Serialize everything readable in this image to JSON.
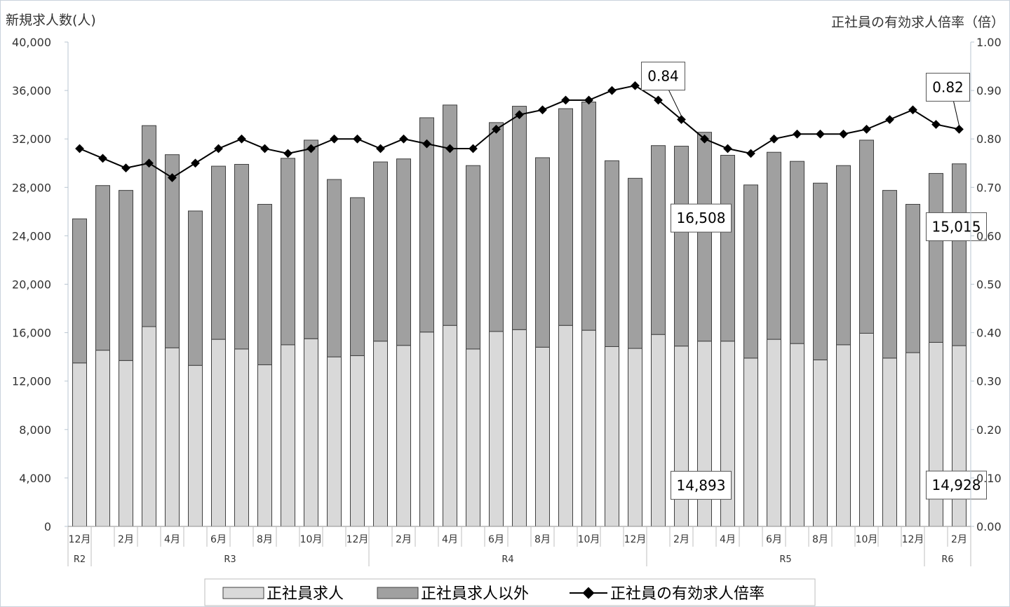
{
  "colors": {
    "regular_bar": "#d9d9d9",
    "other_bar": "#a0a0a0",
    "bar_stroke": "#404040",
    "line": "#000000",
    "grid": "#b9c6d2"
  },
  "chart_data": {
    "type": "bar",
    "stacked": true,
    "left_axis_label": "新規求人数(人)",
    "right_axis_label": "正社員の有効求人倍率（倍）",
    "ylim_left": [
      0,
      40000
    ],
    "ylim_right": [
      0,
      1.0
    ],
    "left_ticks": [
      "0",
      "4,000",
      "8,000",
      "12,000",
      "16,000",
      "20,000",
      "24,000",
      "28,000",
      "32,000",
      "36,000",
      "40,000"
    ],
    "right_ticks": [
      "0.00",
      "0.10",
      "0.20",
      "0.30",
      "0.40",
      "0.50",
      "0.60",
      "0.70",
      "0.80",
      "0.90",
      "1.00"
    ],
    "month_labels": [
      "12月",
      "",
      "2月",
      "",
      "4月",
      "",
      "6月",
      "",
      "8月",
      "",
      "10月",
      "",
      "12月",
      "",
      "2月",
      "",
      "4月",
      "",
      "6月",
      "",
      "8月",
      "",
      "10月",
      "",
      "12月",
      "",
      "2月",
      "",
      "4月",
      "",
      "6月",
      "",
      "8月",
      "",
      "10月",
      "",
      "12月",
      "",
      "2月"
    ],
    "eras": [
      {
        "label": "R2",
        "start": 0,
        "end": 0
      },
      {
        "label": "R3",
        "start": 1,
        "end": 12
      },
      {
        "label": "R4",
        "start": 13,
        "end": 24
      },
      {
        "label": "R5",
        "start": 25,
        "end": 36
      },
      {
        "label": "R6",
        "start": 37,
        "end": 38
      }
    ],
    "series": [
      {
        "name": "正社員求人",
        "axis": "left",
        "kind": "bar",
        "values": [
          13500,
          14550,
          13700,
          16500,
          14750,
          13300,
          15450,
          14650,
          13350,
          15000,
          15500,
          14000,
          14100,
          15300,
          14950,
          16050,
          16600,
          14650,
          16100,
          16250,
          14800,
          16600,
          16200,
          14850,
          14700,
          15850,
          14893,
          15300,
          15300,
          13900,
          15450,
          15100,
          13750,
          15000,
          15950,
          13900,
          14350,
          15200,
          14928
        ]
      },
      {
        "name": "正社員求人以外",
        "axis": "left",
        "kind": "bar",
        "values": [
          11900,
          13600,
          14050,
          16600,
          15950,
          12750,
          14300,
          15250,
          13250,
          15400,
          16400,
          14650,
          13050,
          14800,
          15400,
          17700,
          18200,
          15150,
          17250,
          18450,
          15650,
          17900,
          18850,
          15350,
          14050,
          15600,
          16508,
          17250,
          15350,
          14300,
          15450,
          15050,
          14600,
          14800,
          15950,
          13850,
          12250,
          13950,
          15015
        ]
      },
      {
        "name": "正社員の有効求人倍率",
        "axis": "right",
        "kind": "line",
        "values": [
          0.78,
          0.76,
          0.74,
          0.75,
          0.72,
          0.75,
          0.78,
          0.8,
          0.78,
          0.77,
          0.78,
          0.8,
          0.8,
          0.78,
          0.8,
          0.79,
          0.78,
          0.78,
          0.82,
          0.85,
          0.86,
          0.88,
          0.88,
          0.9,
          0.91,
          0.88,
          0.84,
          0.8,
          0.78,
          0.77,
          0.8,
          0.81,
          0.81,
          0.81,
          0.82,
          0.84,
          0.86,
          0.83,
          0.82
        ]
      }
    ],
    "callouts": [
      {
        "text": "0.84",
        "target_index": 26,
        "series": "正社員の有効求人倍率"
      },
      {
        "text": "0.82",
        "target_index": 38,
        "series": "正社員の有効求人倍率"
      },
      {
        "text": "16,508",
        "target_index": 26,
        "series": "正社員求人以外"
      },
      {
        "text": "14,893",
        "target_index": 26,
        "series": "正社員求人"
      },
      {
        "text": "15,015",
        "target_index": 38,
        "series": "正社員求人以外"
      },
      {
        "text": "14,928",
        "target_index": 38,
        "series": "正社員求人"
      }
    ],
    "legend": {
      "position": "bottom",
      "items": [
        "正社員求人",
        "正社員求人以外",
        "正社員の有効求人倍率"
      ]
    },
    "grid": false
  }
}
